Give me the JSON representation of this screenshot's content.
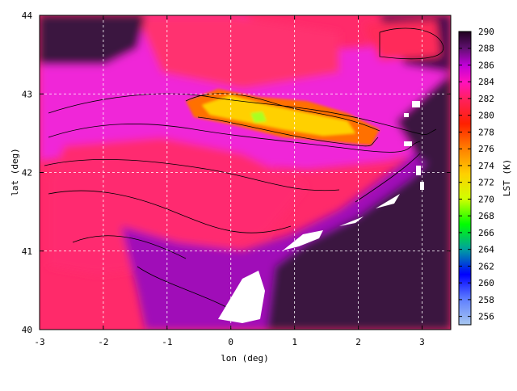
{
  "chart_data": {
    "type": "heatmap",
    "title": "",
    "xlabel": "lon (deg)",
    "ylabel": "lat (deg)",
    "xlim": [
      -3,
      3.45
    ],
    "ylim": [
      40,
      44
    ],
    "x_ticks": [
      {
        "value": -3,
        "label": "-3"
      },
      {
        "value": -2,
        "label": "-2"
      },
      {
        "value": -1,
        "label": "-1"
      },
      {
        "value": 0,
        "label": "0"
      },
      {
        "value": 1,
        "label": "1"
      },
      {
        "value": 2,
        "label": "2"
      },
      {
        "value": 3,
        "label": "3"
      }
    ],
    "y_ticks": [
      {
        "value": 40,
        "label": "40"
      },
      {
        "value": 41,
        "label": "41"
      },
      {
        "value": 42,
        "label": "42"
      },
      {
        "value": 43,
        "label": "43"
      },
      {
        "value": 44,
        "label": "44"
      }
    ],
    "grid": true,
    "colorbar": {
      "label": "LST (K)",
      "min": 255,
      "max": 290,
      "ticks": [
        {
          "value": 290,
          "label": "290"
        },
        {
          "value": 288,
          "label": "288"
        },
        {
          "value": 286,
          "label": "286"
        },
        {
          "value": 284,
          "label": "284"
        },
        {
          "value": 282,
          "label": "282"
        },
        {
          "value": 280,
          "label": "280"
        },
        {
          "value": 278,
          "label": "278"
        },
        {
          "value": 276,
          "label": "276"
        },
        {
          "value": 274,
          "label": "274"
        },
        {
          "value": 272,
          "label": "272"
        },
        {
          "value": 270,
          "label": "270"
        },
        {
          "value": 268,
          "label": "268"
        },
        {
          "value": 266,
          "label": "266"
        },
        {
          "value": 264,
          "label": "264"
        },
        {
          "value": 262,
          "label": "262"
        },
        {
          "value": 260,
          "label": "260"
        },
        {
          "value": 258,
          "label": "258"
        },
        {
          "value": 256,
          "label": "256"
        }
      ],
      "stops": [
        {
          "value": 255,
          "color": "#a8c8f0"
        },
        {
          "value": 258,
          "color": "#6080ff"
        },
        {
          "value": 261,
          "color": "#0000ff"
        },
        {
          "value": 264,
          "color": "#00a0a0"
        },
        {
          "value": 267,
          "color": "#00ff00"
        },
        {
          "value": 270,
          "color": "#d0ff00"
        },
        {
          "value": 273,
          "color": "#ffd000"
        },
        {
          "value": 276,
          "color": "#ff8000"
        },
        {
          "value": 279,
          "color": "#ff2000"
        },
        {
          "value": 282,
          "color": "#ff2060"
        },
        {
          "value": 284,
          "color": "#ff10c0"
        },
        {
          "value": 286,
          "color": "#c000d8"
        },
        {
          "value": 288,
          "color": "#601070"
        },
        {
          "value": 290,
          "color": "#200020"
        }
      ]
    },
    "colors": {
      "sea": "#3a1640",
      "land_warm": "#ff2878",
      "land_mid": "#f020d0",
      "coast": "#a010c0",
      "cold": "#ffd000",
      "missing": "#ffffff"
    }
  }
}
